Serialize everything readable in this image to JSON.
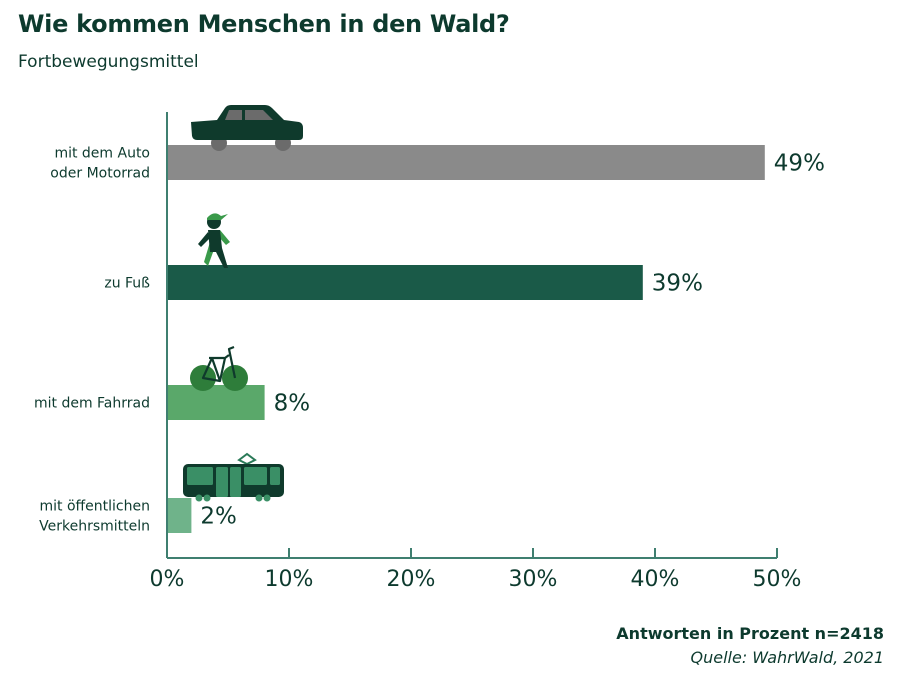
{
  "header": {
    "title": "Wie kommen Menschen in den Wald?",
    "subtitle": "Fortbewegungsmittel"
  },
  "footer": {
    "note": "Antworten in Prozent  n=2418",
    "source": "Quelle: WahrWald, 2021"
  },
  "chart_data": {
    "type": "bar",
    "orientation": "horizontal",
    "title": "Wie kommen Menschen in den Wald?",
    "subtitle": "Fortbewegungsmittel",
    "categories": [
      [
        "mit dem Auto",
        "oder Motorrad"
      ],
      [
        "zu Fuß"
      ],
      [
        "mit dem Fahrrad"
      ],
      [
        "mit öffentlichen",
        "Verkehrsmitteln"
      ]
    ],
    "values": [
      49,
      39,
      8,
      2
    ],
    "value_labels": [
      "49%",
      "39%",
      "8%",
      "2%"
    ],
    "bar_colors": [
      "#8a8a8a",
      "#1a5a48",
      "#5aa86a",
      "#6fb38a"
    ],
    "icons": [
      "car-icon",
      "pedestrian-icon",
      "bicycle-icon",
      "tram-icon"
    ],
    "xlim": [
      0,
      50
    ],
    "xticks": [
      0,
      10,
      20,
      30,
      40,
      50
    ],
    "xtick_labels": [
      "0%",
      "10%",
      "20%",
      "30%",
      "40%",
      "50%"
    ],
    "xlabel": "",
    "ylabel": "",
    "grid": false,
    "unit": "Antworten in Prozent",
    "n": 2418,
    "axis_color": "#3f7f70"
  }
}
